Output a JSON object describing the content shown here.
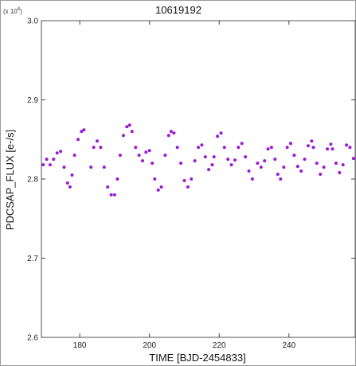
{
  "chart_data": {
    "type": "scatter",
    "title": "10619192",
    "xlabel": "TIME [BJD-2454833]",
    "ylabel": "PDCSAP_FLUX [e-/s]",
    "y_multiplier_label": "(x 10",
    "y_multiplier_exp": "4",
    "y_multiplier_close": ")",
    "xlim": [
      169,
      259
    ],
    "ylim": [
      2.6,
      3.0
    ],
    "x_ticks": [
      180,
      200,
      220,
      240
    ],
    "y_ticks": [
      2.6,
      2.7,
      2.8,
      2.9,
      3.0
    ],
    "y_tick_labels": [
      "2.6",
      "2.7",
      "2.8",
      "2.9",
      "3.0"
    ],
    "grid": false,
    "color": "#9a1ad6",
    "series": [
      {
        "x": [
          169.5,
          170.5,
          171.5,
          172.5,
          173.5,
          174.5,
          175.5,
          176.5,
          177.2,
          177.8,
          178.5,
          179.5,
          180.5,
          181.2,
          183.2,
          184.0,
          185.0,
          186.0,
          187.0,
          188.0,
          189.0,
          190.0,
          190.8,
          191.6,
          192.5,
          193.5,
          194.3,
          195.0,
          196.0,
          197.0,
          198.0,
          199.0,
          200.0,
          200.8,
          201.5,
          202.5,
          203.4,
          204.5,
          205.5,
          206.2,
          207.0,
          208.0,
          209.0,
          210.0,
          211.0,
          212.0,
          213.0,
          214.0,
          215.0,
          216.0,
          217.0,
          218.0,
          218.5,
          219.5,
          220.5,
          221.5,
          222.5,
          223.5,
          224.5,
          225.5,
          226.5,
          227.5,
          228.5,
          229.5,
          231.0,
          232.0,
          233.0,
          234.0,
          235.0,
          236.0,
          236.8,
          237.6,
          238.5,
          239.5,
          240.5,
          241.5,
          242.5,
          243.5,
          244.5,
          245.5,
          246.5,
          247.0,
          248.0,
          249.0,
          250.0,
          251.0,
          252.0,
          252.5,
          253.5,
          254.5,
          255.5,
          256.5,
          257.5,
          258.5
        ],
        "y": [
          2.818,
          2.825,
          2.818,
          2.825,
          2.833,
          2.835,
          2.815,
          2.795,
          2.79,
          2.805,
          2.83,
          2.85,
          2.86,
          2.862,
          2.815,
          2.84,
          2.848,
          2.84,
          2.815,
          2.79,
          2.78,
          2.78,
          2.8,
          2.83,
          2.855,
          2.866,
          2.868,
          2.86,
          2.84,
          2.83,
          2.823,
          2.834,
          2.836,
          2.82,
          2.8,
          2.786,
          2.79,
          2.83,
          2.855,
          2.86,
          2.858,
          2.84,
          2.82,
          2.798,
          2.79,
          2.8,
          2.823,
          2.84,
          2.843,
          2.828,
          2.812,
          2.818,
          2.828,
          2.854,
          2.858,
          2.84,
          2.825,
          2.818,
          2.824,
          2.84,
          2.845,
          2.828,
          2.81,
          2.8,
          2.82,
          2.815,
          2.823,
          2.838,
          2.84,
          2.825,
          2.806,
          2.8,
          2.815,
          2.84,
          2.845,
          2.83,
          2.816,
          2.81,
          2.825,
          2.842,
          2.848,
          2.84,
          2.82,
          2.806,
          2.815,
          2.838,
          2.844,
          2.838,
          2.82,
          2.808,
          2.818,
          2.843,
          2.84,
          2.826
        ]
      }
    ]
  }
}
